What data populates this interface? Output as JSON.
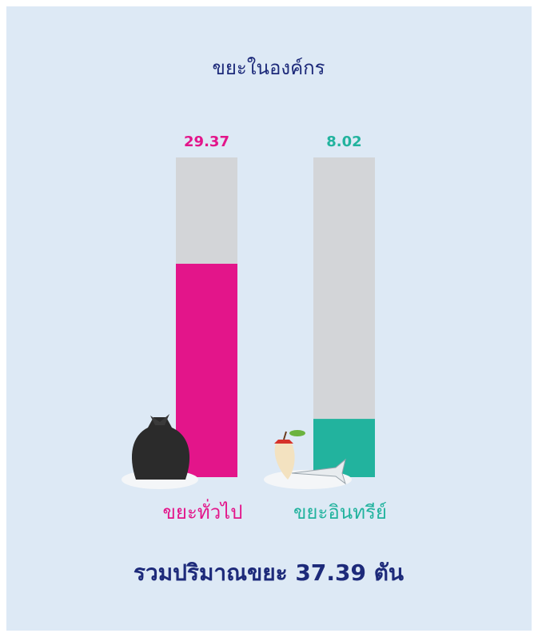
{
  "chart_data": {
    "type": "bar",
    "title": "ขยะในองค์กร",
    "categories": [
      "ขยะทั่วไป",
      "ขยะอินทรีย์"
    ],
    "values": [
      29.37,
      8.02
    ],
    "colors": [
      "#e3158a",
      "#22b39e"
    ],
    "ylim": [
      0,
      44
    ],
    "total_label": "รวมปริมาณขยะ 37.39 ตัน"
  }
}
